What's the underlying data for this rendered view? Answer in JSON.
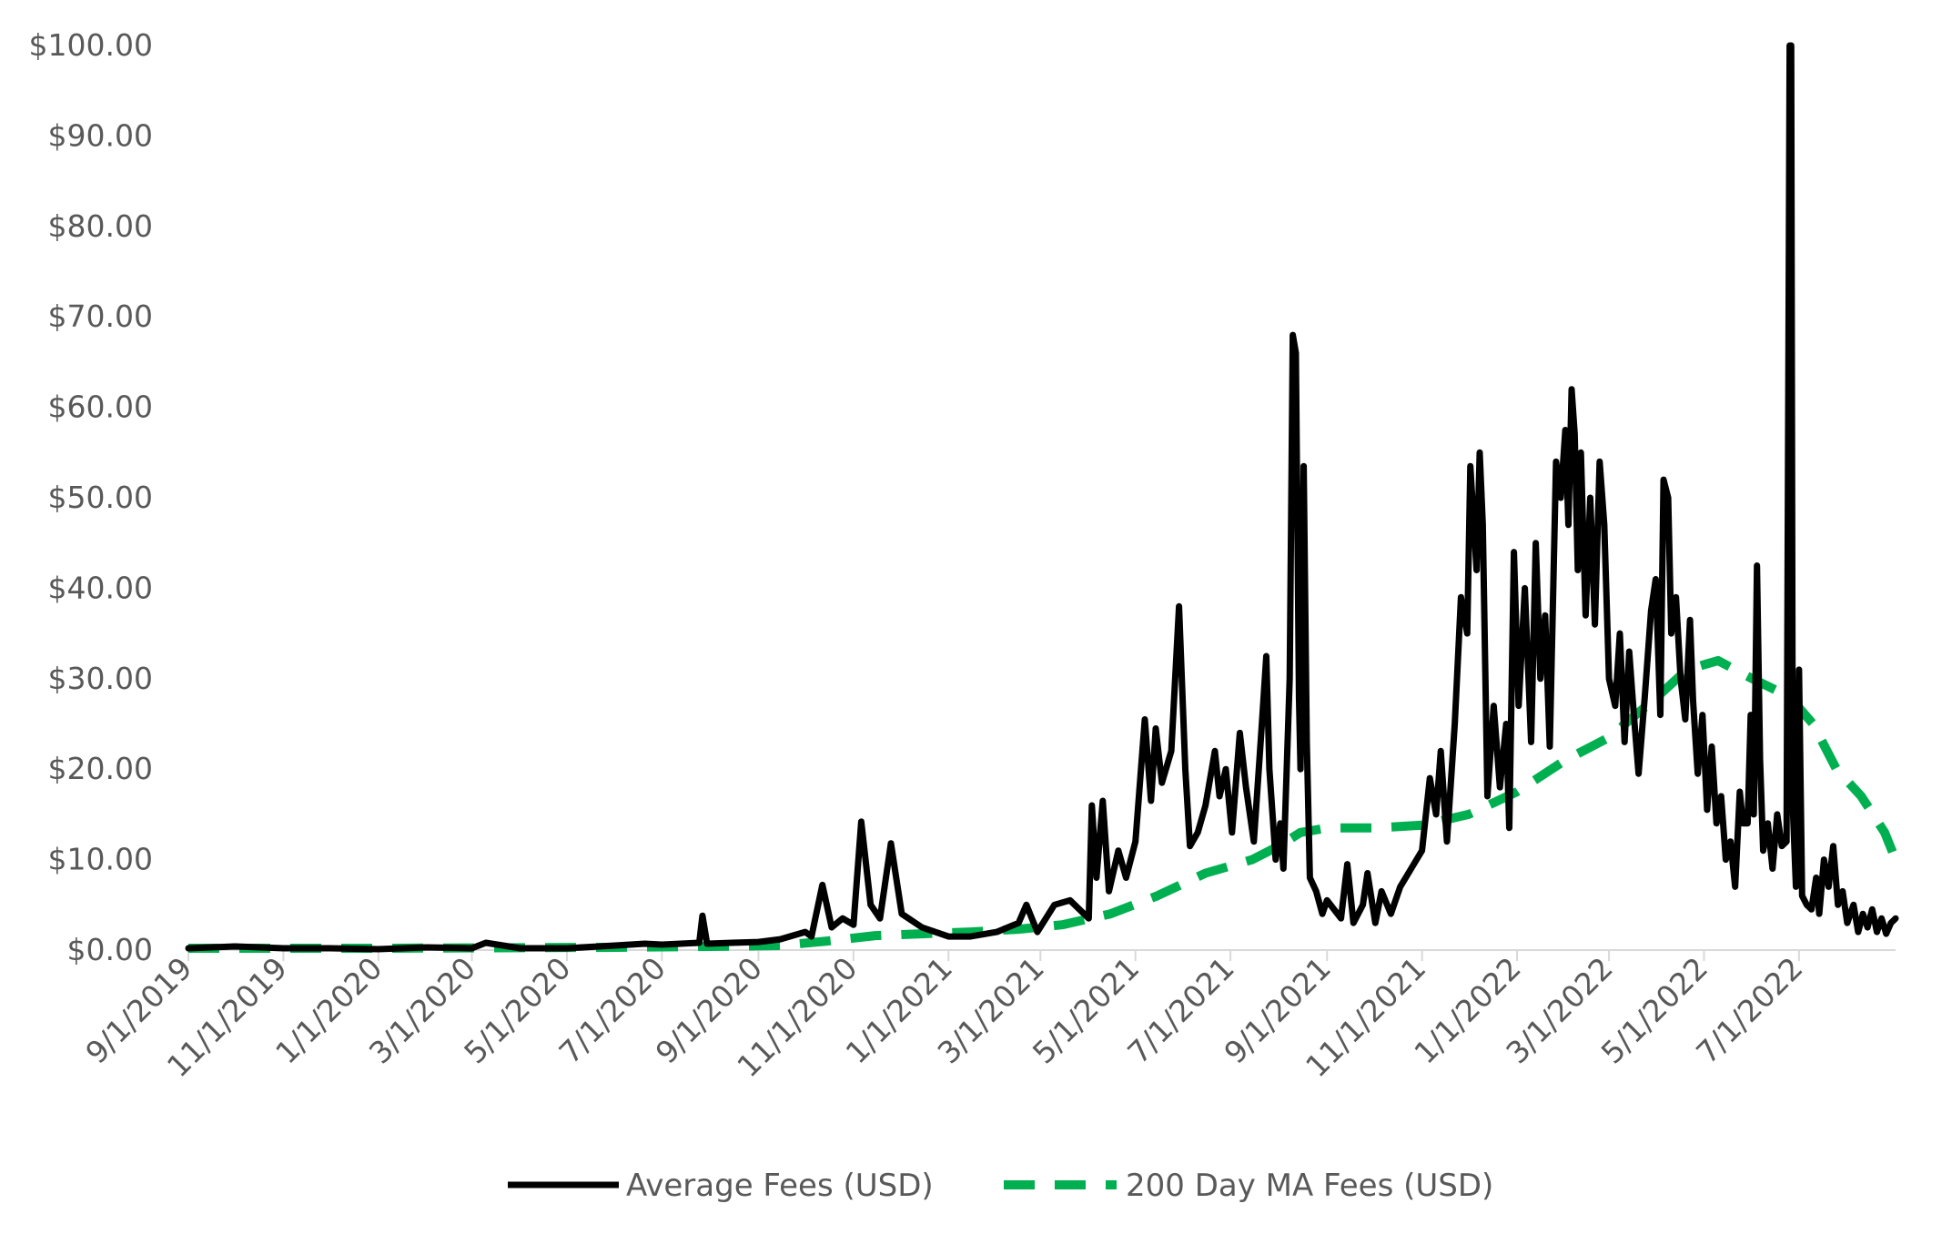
{
  "chart_data": {
    "type": "line",
    "title": "",
    "xlabel": "",
    "ylabel": "",
    "ylim": [
      0,
      100
    ],
    "xlim": [
      "2019-09-01",
      "2022-09-01"
    ],
    "yticks": [
      "$0.00",
      "$10.00",
      "$20.00",
      "$30.00",
      "$40.00",
      "$50.00",
      "$60.00",
      "$70.00",
      "$80.00",
      "$90.00",
      "$100.00"
    ],
    "xticks": [
      {
        "date": "2019-09-01",
        "label": "9/1/2019"
      },
      {
        "date": "2019-11-01",
        "label": "11/1/2019"
      },
      {
        "date": "2020-01-01",
        "label": "1/1/2020"
      },
      {
        "date": "2020-03-01",
        "label": "3/1/2020"
      },
      {
        "date": "2020-05-01",
        "label": "5/1/2020"
      },
      {
        "date": "2020-07-01",
        "label": "7/1/2020"
      },
      {
        "date": "2020-09-01",
        "label": "9/1/2020"
      },
      {
        "date": "2020-11-01",
        "label": "11/1/2020"
      },
      {
        "date": "2021-01-01",
        "label": "1/1/2021"
      },
      {
        "date": "2021-03-01",
        "label": "3/1/2021"
      },
      {
        "date": "2021-05-01",
        "label": "5/1/2021"
      },
      {
        "date": "2021-07-01",
        "label": "7/1/2021"
      },
      {
        "date": "2021-09-01",
        "label": "9/1/2021"
      },
      {
        "date": "2021-11-01",
        "label": "11/1/2021"
      },
      {
        "date": "2022-01-01",
        "label": "1/1/2022"
      },
      {
        "date": "2022-03-01",
        "label": "3/1/2022"
      },
      {
        "date": "2022-05-01",
        "label": "5/1/2022"
      },
      {
        "date": "2022-07-01",
        "label": "7/1/2022"
      }
    ],
    "grid": false,
    "legend_position": "bottom",
    "series": [
      {
        "name": "Average Fees (USD)",
        "color": "#000000",
        "style": "solid",
        "points": [
          [
            "2019-09-01",
            0.2
          ],
          [
            "2019-10-01",
            0.4
          ],
          [
            "2019-11-01",
            0.2
          ],
          [
            "2019-12-01",
            0.2
          ],
          [
            "2020-01-01",
            0.1
          ],
          [
            "2020-02-01",
            0.3
          ],
          [
            "2020-03-01",
            0.2
          ],
          [
            "2020-03-10",
            0.8
          ],
          [
            "2020-04-01",
            0.2
          ],
          [
            "2020-05-01",
            0.2
          ],
          [
            "2020-06-01",
            0.5
          ],
          [
            "2020-06-20",
            0.7
          ],
          [
            "2020-07-01",
            0.6
          ],
          [
            "2020-07-25",
            0.8
          ],
          [
            "2020-07-27",
            3.8
          ],
          [
            "2020-07-30",
            0.7
          ],
          [
            "2020-08-15",
            0.8
          ],
          [
            "2020-09-01",
            0.9
          ],
          [
            "2020-09-15",
            1.2
          ],
          [
            "2020-10-01",
            2.0
          ],
          [
            "2020-10-05",
            1.5
          ],
          [
            "2020-10-12",
            7.2
          ],
          [
            "2020-10-18",
            2.5
          ],
          [
            "2020-10-25",
            3.5
          ],
          [
            "2020-11-01",
            2.8
          ],
          [
            "2020-11-06",
            14.2
          ],
          [
            "2020-11-12",
            5.0
          ],
          [
            "2020-11-18",
            3.5
          ],
          [
            "2020-11-25",
            11.8
          ],
          [
            "2020-12-02",
            4.0
          ],
          [
            "2020-12-15",
            2.5
          ],
          [
            "2021-01-01",
            1.5
          ],
          [
            "2021-01-15",
            1.5
          ],
          [
            "2021-02-01",
            2.0
          ],
          [
            "2021-02-15",
            3.0
          ],
          [
            "2021-02-20",
            5.0
          ],
          [
            "2021-02-27",
            2.0
          ],
          [
            "2021-03-10",
            5.0
          ],
          [
            "2021-03-20",
            5.5
          ],
          [
            "2021-04-01",
            3.5
          ],
          [
            "2021-04-03",
            16.0
          ],
          [
            "2021-04-06",
            8.0
          ],
          [
            "2021-04-10",
            16.5
          ],
          [
            "2021-04-14",
            6.5
          ],
          [
            "2021-04-20",
            11.0
          ],
          [
            "2021-04-25",
            8.0
          ],
          [
            "2021-05-01",
            12.0
          ],
          [
            "2021-05-07",
            25.5
          ],
          [
            "2021-05-11",
            16.5
          ],
          [
            "2021-05-14",
            24.5
          ],
          [
            "2021-05-18",
            18.5
          ],
          [
            "2021-05-24",
            22.0
          ],
          [
            "2021-05-29",
            38.0
          ],
          [
            "2021-06-02",
            20.0
          ],
          [
            "2021-06-05",
            11.5
          ],
          [
            "2021-06-10",
            13.0
          ],
          [
            "2021-06-15",
            16.0
          ],
          [
            "2021-06-21",
            22.0
          ],
          [
            "2021-06-24",
            17.0
          ],
          [
            "2021-06-28",
            20.0
          ],
          [
            "2021-07-02",
            13.0
          ],
          [
            "2021-07-07",
            24.0
          ],
          [
            "2021-07-11",
            18.0
          ],
          [
            "2021-07-16",
            12.0
          ],
          [
            "2021-07-21",
            24.5
          ],
          [
            "2021-07-24",
            32.5
          ],
          [
            "2021-07-26",
            20.0
          ],
          [
            "2021-07-30",
            10.0
          ],
          [
            "2021-08-02",
            14.0
          ],
          [
            "2021-08-04",
            9.0
          ],
          [
            "2021-08-08",
            30.0
          ],
          [
            "2021-08-10",
            68.0
          ],
          [
            "2021-08-12",
            66.0
          ],
          [
            "2021-08-14",
            28.0
          ],
          [
            "2021-08-15",
            20.0
          ],
          [
            "2021-08-17",
            53.5
          ],
          [
            "2021-08-19",
            23.0
          ],
          [
            "2021-08-21",
            8.0
          ],
          [
            "2021-08-25",
            6.5
          ],
          [
            "2021-08-29",
            4.0
          ],
          [
            "2021-09-01",
            5.5
          ],
          [
            "2021-09-10",
            3.5
          ],
          [
            "2021-09-14",
            9.5
          ],
          [
            "2021-09-18",
            3.0
          ],
          [
            "2021-09-24",
            5.0
          ],
          [
            "2021-09-27",
            8.5
          ],
          [
            "2021-10-02",
            3.0
          ],
          [
            "2021-10-06",
            6.5
          ],
          [
            "2021-10-12",
            4.0
          ],
          [
            "2021-10-18",
            7.0
          ],
          [
            "2021-10-25",
            9.0
          ],
          [
            "2021-11-01",
            11.0
          ],
          [
            "2021-11-06",
            19.0
          ],
          [
            "2021-11-10",
            15.0
          ],
          [
            "2021-11-13",
            22.0
          ],
          [
            "2021-11-17",
            12.0
          ],
          [
            "2021-11-22",
            25.0
          ],
          [
            "2021-11-26",
            39.0
          ],
          [
            "2021-11-30",
            35.0
          ],
          [
            "2021-12-02",
            53.5
          ],
          [
            "2021-12-06",
            42.0
          ],
          [
            "2021-12-08",
            55.0
          ],
          [
            "2021-12-10",
            47.0
          ],
          [
            "2021-12-13",
            17.0
          ],
          [
            "2021-12-17",
            27.0
          ],
          [
            "2021-12-21",
            18.0
          ],
          [
            "2021-12-25",
            25.0
          ],
          [
            "2021-12-27",
            13.5
          ],
          [
            "2021-12-30",
            44.0
          ],
          [
            "2022-01-02",
            27.0
          ],
          [
            "2022-01-06",
            40.0
          ],
          [
            "2022-01-10",
            23.0
          ],
          [
            "2022-01-13",
            45.0
          ],
          [
            "2022-01-16",
            30.0
          ],
          [
            "2022-01-19",
            37.0
          ],
          [
            "2022-01-22",
            22.5
          ],
          [
            "2022-01-26",
            54.0
          ],
          [
            "2022-01-29",
            50.0
          ],
          [
            "2022-02-01",
            57.5
          ],
          [
            "2022-02-03",
            47.0
          ],
          [
            "2022-02-05",
            62.0
          ],
          [
            "2022-02-07",
            57.0
          ],
          [
            "2022-02-09",
            42.0
          ],
          [
            "2022-02-11",
            55.0
          ],
          [
            "2022-02-14",
            37.0
          ],
          [
            "2022-02-17",
            50.0
          ],
          [
            "2022-02-20",
            36.0
          ],
          [
            "2022-02-23",
            54.0
          ],
          [
            "2022-02-26",
            47.0
          ],
          [
            "2022-03-01",
            30.0
          ],
          [
            "2022-03-05",
            27.0
          ],
          [
            "2022-03-08",
            35.0
          ],
          [
            "2022-03-11",
            23.0
          ],
          [
            "2022-03-14",
            33.0
          ],
          [
            "2022-03-17",
            26.0
          ],
          [
            "2022-03-20",
            19.5
          ],
          [
            "2022-03-24",
            28.0
          ],
          [
            "2022-03-28",
            37.5
          ],
          [
            "2022-03-31",
            41.0
          ],
          [
            "2022-04-03",
            26.0
          ],
          [
            "2022-04-05",
            52.0
          ],
          [
            "2022-04-08",
            50.0
          ],
          [
            "2022-04-10",
            35.0
          ],
          [
            "2022-04-13",
            39.0
          ],
          [
            "2022-04-16",
            30.0
          ],
          [
            "2022-04-19",
            25.5
          ],
          [
            "2022-04-22",
            36.5
          ],
          [
            "2022-04-24",
            27.5
          ],
          [
            "2022-04-27",
            19.5
          ],
          [
            "2022-04-30",
            26.0
          ],
          [
            "2022-05-03",
            15.5
          ],
          [
            "2022-05-06",
            22.5
          ],
          [
            "2022-05-09",
            14.0
          ],
          [
            "2022-05-12",
            17.0
          ],
          [
            "2022-05-15",
            10.0
          ],
          [
            "2022-05-18",
            12.0
          ],
          [
            "2022-05-21",
            7.0
          ],
          [
            "2022-05-24",
            17.5
          ],
          [
            "2022-05-26",
            14.0
          ],
          [
            "2022-05-29",
            14.0
          ],
          [
            "2022-05-31",
            26.0
          ],
          [
            "2022-06-02",
            15.0
          ],
          [
            "2022-06-04",
            42.5
          ],
          [
            "2022-06-06",
            21.0
          ],
          [
            "2022-06-08",
            11.0
          ],
          [
            "2022-06-11",
            14.0
          ],
          [
            "2022-06-14",
            9.0
          ],
          [
            "2022-06-17",
            15.0
          ],
          [
            "2022-06-20",
            11.5
          ],
          [
            "2022-06-23",
            12.0
          ],
          [
            "2022-06-25",
            100.0
          ],
          [
            "2022-06-26",
            100.0
          ],
          [
            "2022-06-27",
            16.0
          ],
          [
            "2022-06-29",
            7.0
          ],
          [
            "2022-07-01",
            31.0
          ],
          [
            "2022-07-03",
            6.0
          ],
          [
            "2022-07-06",
            5.0
          ],
          [
            "2022-07-09",
            4.5
          ],
          [
            "2022-07-12",
            8.0
          ],
          [
            "2022-07-14",
            4.0
          ],
          [
            "2022-07-17",
            10.0
          ],
          [
            "2022-07-20",
            7.0
          ],
          [
            "2022-07-23",
            11.5
          ],
          [
            "2022-07-26",
            5.0
          ],
          [
            "2022-07-29",
            6.5
          ],
          [
            "2022-08-01",
            3.0
          ],
          [
            "2022-08-05",
            5.0
          ],
          [
            "2022-08-08",
            2.0
          ],
          [
            "2022-08-11",
            4.0
          ],
          [
            "2022-08-14",
            2.5
          ],
          [
            "2022-08-17",
            4.5
          ],
          [
            "2022-08-20",
            2.0
          ],
          [
            "2022-08-23",
            3.5
          ],
          [
            "2022-08-26",
            1.8
          ],
          [
            "2022-08-29",
            3.0
          ],
          [
            "2022-09-01",
            3.5
          ]
        ]
      },
      {
        "name": "200 Day MA Fees (USD)",
        "color": "#00b050",
        "style": "dashed",
        "points": [
          [
            "2019-09-01",
            0.2
          ],
          [
            "2020-01-01",
            0.2
          ],
          [
            "2020-06-01",
            0.3
          ],
          [
            "2020-08-01",
            0.4
          ],
          [
            "2020-09-15",
            0.5
          ],
          [
            "2020-10-15",
            1.0
          ],
          [
            "2020-11-15",
            1.6
          ],
          [
            "2020-12-15",
            1.8
          ],
          [
            "2021-01-15",
            2.0
          ],
          [
            "2021-02-15",
            2.3
          ],
          [
            "2021-03-15",
            2.8
          ],
          [
            "2021-04-15",
            4.0
          ],
          [
            "2021-05-15",
            6.0
          ],
          [
            "2021-06-15",
            8.5
          ],
          [
            "2021-07-15",
            10.0
          ],
          [
            "2021-08-01",
            11.5
          ],
          [
            "2021-08-15",
            13.0
          ],
          [
            "2021-09-01",
            13.5
          ],
          [
            "2021-10-01",
            13.5
          ],
          [
            "2021-11-01",
            13.8
          ],
          [
            "2021-12-01",
            15.0
          ],
          [
            "2022-01-01",
            17.5
          ],
          [
            "2022-02-01",
            21.0
          ],
          [
            "2022-03-01",
            23.5
          ],
          [
            "2022-04-01",
            28.0
          ],
          [
            "2022-04-20",
            31.0
          ],
          [
            "2022-05-10",
            32.0
          ],
          [
            "2022-06-01",
            30.0
          ],
          [
            "2022-06-25",
            28.0
          ],
          [
            "2022-07-10",
            25.0
          ],
          [
            "2022-07-25",
            20.0
          ],
          [
            "2022-08-10",
            17.0
          ],
          [
            "2022-08-25",
            13.0
          ],
          [
            "2022-09-01",
            10.0
          ]
        ]
      }
    ]
  }
}
